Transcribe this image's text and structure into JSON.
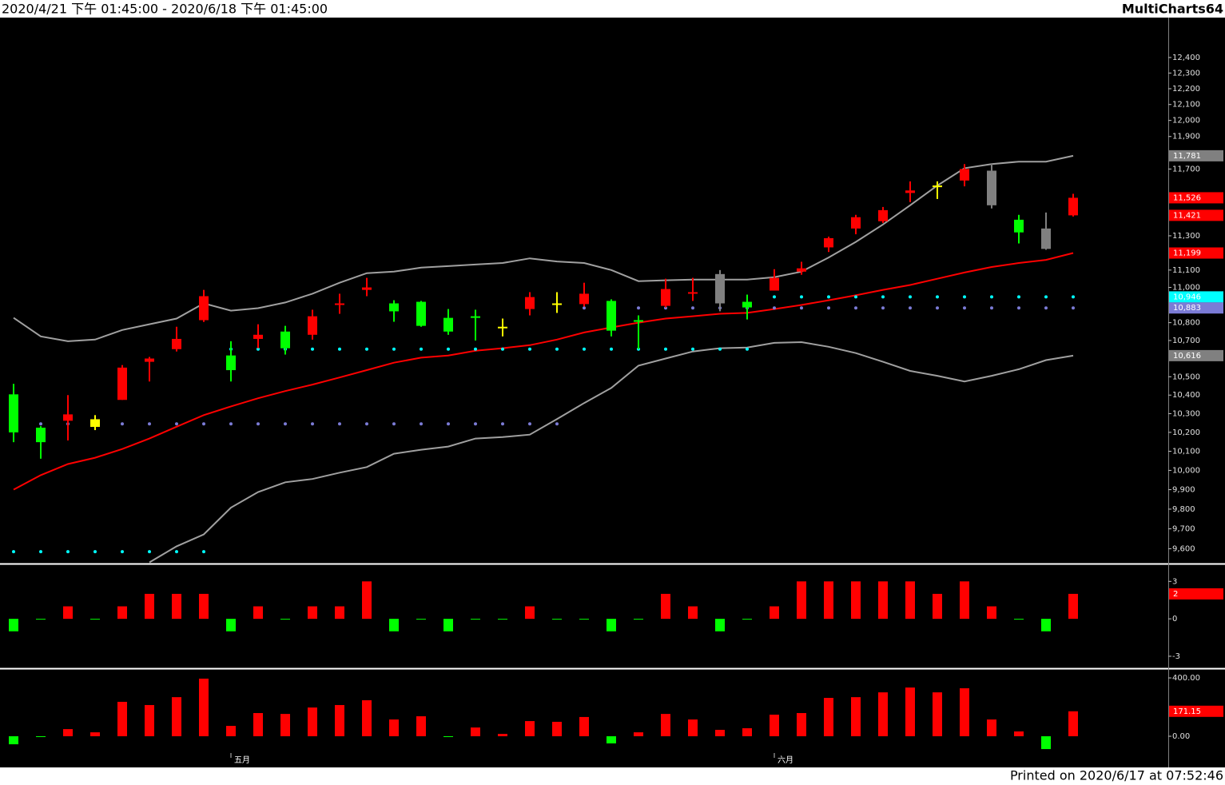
{
  "header": {
    "range": "2020/4/21 下午 01:45:00 - 2020/6/18 下午 01:45:00",
    "app": "MultiCharts64"
  },
  "footer": "Printed on 2020/6/17 at 07:52:46",
  "chart_data": [
    {
      "type": "candlestick",
      "log_scale": true,
      "categories": [
        null,
        null,
        null,
        null,
        null,
        null,
        null,
        null,
        "五月",
        null,
        null,
        null,
        null,
        null,
        null,
        null,
        null,
        null,
        null,
        null,
        null,
        null,
        null,
        null,
        null,
        null,
        null,
        null,
        "六月",
        null,
        null,
        null,
        null,
        null,
        null,
        null,
        null,
        null,
        null,
        null
      ],
      "open": [
        10404,
        10225,
        10262,
        10229,
        10374,
        10582,
        10652,
        10814,
        10617,
        10709,
        10750,
        10732,
        10900,
        10986,
        10909,
        10918,
        10827,
        10836,
        10768,
        10877,
        10900,
        10905,
        10923,
        10814,
        10895,
        10964,
        11077,
        10918,
        10982,
        11091,
        11232,
        11343,
        11386,
        11555,
        11590,
        11630,
        11690,
        11395,
        11343,
        11421
      ],
      "high": [
        10461,
        10233,
        10400,
        10292,
        10564,
        10609,
        10777,
        10986,
        10696,
        10791,
        10782,
        10873,
        10964,
        11055,
        10927,
        10923,
        10877,
        10873,
        10823,
        10973,
        10973,
        11027,
        10932,
        10841,
        11050,
        11055,
        11100,
        10959,
        11105,
        11148,
        11295,
        11424,
        11471,
        11625,
        11625,
        11730,
        11735,
        11424,
        11438,
        11550
      ],
      "low": [
        10148,
        10061,
        10157,
        10212,
        10374,
        10474,
        10639,
        10804,
        10474,
        10657,
        10622,
        10705,
        10850,
        10950,
        10805,
        10777,
        10732,
        10700,
        10723,
        10841,
        10855,
        10891,
        10723,
        10652,
        10886,
        10923,
        10864,
        10818,
        10982,
        11073,
        11205,
        11309,
        11376,
        11500,
        11519,
        11595,
        11462,
        11255,
        11218,
        11414
      ],
      "close": [
        10200,
        10148,
        10296,
        10270,
        10550,
        10600,
        10709,
        10950,
        10536,
        10732,
        10657,
        10836,
        10909,
        11000,
        10864,
        10782,
        10750,
        10827,
        10777,
        10945,
        10909,
        10964,
        10755,
        10805,
        10991,
        10973,
        10909,
        10886,
        11055,
        11110,
        11286,
        11410,
        11452,
        11570,
        11600,
        11700,
        11481,
        11320,
        11223,
        11526
      ],
      "candle_colors": [
        "#00ff00",
        "#00ff00",
        "#ff0000",
        "#ffff00",
        "#ff0000",
        "#ff0000",
        "#ff0000",
        "#ff0000",
        "#00ff00",
        "#ff0000",
        "#00ff00",
        "#ff0000",
        "#ff0000",
        "#ff0000",
        "#00ff00",
        "#00ff00",
        "#00ff00",
        "#00ff00",
        "#ffff00",
        "#ff0000",
        "#ffff00",
        "#ff0000",
        "#00ff00",
        "#00ff00",
        "#ff0000",
        "#ff0000",
        "#808080",
        "#00ff00",
        "#ff0000",
        "#ff0000",
        "#ff0000",
        "#ff0000",
        "#ff0000",
        "#ff0000",
        "#ffff00",
        "#ff0000",
        "#808080",
        "#00ff00",
        "#808080",
        "#ff0000"
      ],
      "lines": [
        {
          "color": "#a0a0a0",
          "values": [
            10827,
            10723,
            10696,
            10705,
            10759,
            10791,
            10823,
            10909,
            10868,
            10882,
            10914,
            10964,
            11027,
            11082,
            11091,
            11114,
            11123,
            11132,
            11141,
            11168,
            11150,
            11141,
            11100,
            11036,
            11041,
            11045,
            11045,
            11045,
            11059,
            11091,
            11173,
            11264,
            11367,
            11481,
            11600,
            11705,
            11730,
            11745,
            11745,
            11781
          ]
        },
        {
          "color": "#a0a0a0",
          "values": [
            null,
            null,
            null,
            null,
            null,
            9532,
            9612,
            9672,
            9808,
            9888,
            9938,
            9955,
            9988,
            10017,
            10087,
            10108,
            10125,
            10167,
            10175,
            10188,
            10271,
            10357,
            10439,
            10561,
            10600,
            10639,
            10657,
            10661,
            10687,
            10691,
            10665,
            10630,
            10582,
            10532,
            10505,
            10474,
            10505,
            10541,
            10591,
            10616
          ]
        },
        {
          "color": "#ff0000",
          "values": [
            9900,
            9975,
            10033,
            10066,
            10112,
            10167,
            10230,
            10292,
            10339,
            10383,
            10422,
            10457,
            10496,
            10536,
            10577,
            10605,
            10617,
            10643,
            10657,
            10674,
            10705,
            10745,
            10773,
            10800,
            10823,
            10836,
            10850,
            10855,
            10877,
            10900,
            10927,
            10955,
            10986,
            11014,
            11050,
            11086,
            11118,
            11141,
            11159,
            11199
          ]
        }
      ],
      "dots": [
        {
          "color": "#00ffff",
          "values": [
            9585,
            9585,
            9585,
            9585,
            9585,
            9585,
            9585,
            9585,
            10652,
            10652,
            10652,
            10652,
            10652,
            10652,
            10652,
            10652,
            10652,
            10652,
            10652,
            10652,
            10652,
            10652,
            10652,
            10652,
            10652,
            10652,
            10652,
            10652,
            10946,
            10946,
            10946,
            10946,
            10946,
            10946,
            10946,
            10946,
            10946,
            10946,
            10946,
            10946
          ]
        },
        {
          "color": "#7b7bd6",
          "values": [
            10245,
            10245,
            10245,
            10245,
            10245,
            10245,
            10245,
            10245,
            10245,
            10245,
            10245,
            10245,
            10245,
            10245,
            10245,
            10245,
            10245,
            10245,
            10245,
            10245,
            10245,
            10883,
            10883,
            10883,
            10883,
            10883,
            10883,
            10883,
            10883,
            10883,
            10883,
            10883,
            10883,
            10883,
            10883,
            10883,
            10883,
            10883,
            10883,
            10883
          ]
        }
      ],
      "price_markers": [
        {
          "value": 11781,
          "label": "11,781",
          "color": "#808080"
        },
        {
          "value": 11526,
          "label": "11,526",
          "color": "#ff0000"
        },
        {
          "value": 11421,
          "label": "11,421",
          "color": "#ff0000"
        },
        {
          "value": 11199,
          "label": "11,199",
          "color": "#ff0000"
        },
        {
          "value": 10946,
          "label": "10,946",
          "color": "#00ffff"
        },
        {
          "value": 10883,
          "label": "10,883",
          "color": "#7b7bd6"
        },
        {
          "value": 10616,
          "label": "10,616",
          "color": "#808080"
        }
      ],
      "ylim": [
        9530,
        12650
      ],
      "yticks": [
        {
          "value": 9600,
          "label": "9,600"
        },
        {
          "value": 9700,
          "label": "9,700"
        },
        {
          "value": 9800,
          "label": "9,800"
        },
        {
          "value": 9900,
          "label": "9,900"
        },
        {
          "value": 10000,
          "label": "10,000"
        },
        {
          "value": 10100,
          "label": "10,100"
        },
        {
          "value": 10200,
          "label": "10,200"
        },
        {
          "value": 10300,
          "label": "10,300"
        },
        {
          "value": 10400,
          "label": "10,400"
        },
        {
          "value": 10500,
          "label": "10,500"
        },
        {
          "value": 10700,
          "label": "10,700"
        },
        {
          "value": 10800,
          "label": "10,800"
        },
        {
          "value": 11000,
          "label": "11,000"
        },
        {
          "value": 11100,
          "label": "11,100"
        },
        {
          "value": 11300,
          "label": "11,300"
        },
        {
          "value": 11700,
          "label": "11,700"
        },
        {
          "value": 11900,
          "label": "11,900"
        },
        {
          "value": 12000,
          "label": "12,000"
        },
        {
          "value": 12100,
          "label": "12,100"
        },
        {
          "value": 12200,
          "label": "12,200"
        },
        {
          "value": 12300,
          "label": "12,300"
        },
        {
          "value": 12400,
          "label": "12,400"
        }
      ]
    },
    {
      "type": "bar",
      "values": [
        -1,
        0,
        1,
        0,
        1,
        2,
        2,
        2,
        -1,
        1,
        0,
        1,
        1,
        3,
        -1,
        0,
        -1,
        0,
        0,
        1,
        0,
        0,
        -1,
        0,
        2,
        1,
        -1,
        0,
        1,
        3,
        3,
        3,
        3,
        3,
        2,
        3,
        1,
        0,
        -1,
        2
      ],
      "up_color": "#ff0000",
      "down_color": "#00ff00",
      "last_value_marker_color": "#ff0000",
      "ylim": [
        -3.9,
        4.3
      ],
      "yticks": [
        3,
        0,
        -3
      ]
    },
    {
      "type": "bar",
      "values": [
        -55,
        -5,
        49,
        27,
        236,
        214,
        268,
        395,
        71,
        159,
        153,
        197,
        214,
        247,
        115,
        137,
        -3,
        60,
        16,
        104,
        99,
        132,
        -49,
        27,
        153,
        115,
        44,
        55,
        148,
        159,
        263,
        268,
        301,
        334,
        301,
        329,
        115,
        33,
        -88,
        171.15
      ],
      "up_color": "#ff0000",
      "down_color": "#00ff00",
      "last_value_marker_color": "#ff0000",
      "ylim": [
        -115,
        455
      ],
      "yticks": [
        {
          "value": 400,
          "label": "400.00"
        },
        {
          "value": 0,
          "label": "0.00"
        }
      ]
    }
  ]
}
